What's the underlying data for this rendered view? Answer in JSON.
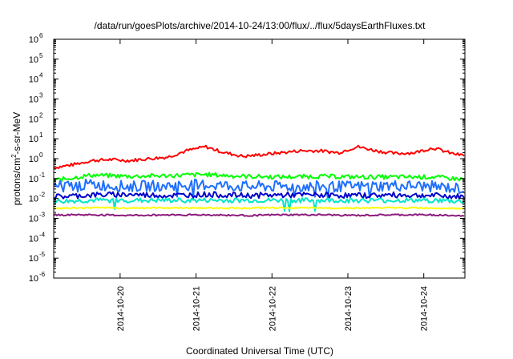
{
  "chart_data": {
    "type": "line",
    "title": "/data/run/goesPlots/archive/2014-10-24/13:00/flux/../flux/5daysEarthFluxes.txt",
    "xlabel": "Coordinated Universal Time (UTC)",
    "ylabel": {
      "base": "protons/cm",
      "sup": "2",
      "rest": "-s-sr-MeV"
    },
    "yscale": "log",
    "ylim": [
      1e-06,
      1000000.0
    ],
    "xlim": [
      "2014-10-19 03:00",
      "2014-10-24 13:00"
    ],
    "grid": false,
    "legend": "none",
    "y_ticks": [
      {
        "value": 1e-06,
        "exp": "-6"
      },
      {
        "value": 1e-05,
        "exp": "-5"
      },
      {
        "value": 0.0001,
        "exp": "-4"
      },
      {
        "value": 0.001,
        "exp": "-3"
      },
      {
        "value": 0.01,
        "exp": "-2"
      },
      {
        "value": 0.1,
        "exp": "-1"
      },
      {
        "value": 1,
        "exp": "0"
      },
      {
        "value": 10,
        "exp": "1"
      },
      {
        "value": 100,
        "exp": "2"
      },
      {
        "value": 1000,
        "exp": "3"
      },
      {
        "value": 10000,
        "exp": "4"
      },
      {
        "value": 100000,
        "exp": "5"
      },
      {
        "value": 1000000,
        "exp": "6"
      }
    ],
    "x_ticks": [
      {
        "value": "2014-10-20 00:00",
        "label": "2014-10-20"
      },
      {
        "value": "2014-10-21 00:00",
        "label": "2014-10-21"
      },
      {
        "value": "2014-10-22 00:00",
        "label": "2014-10-22"
      },
      {
        "value": "2014-10-23 00:00",
        "label": "2014-10-23"
      },
      {
        "value": "2014-10-24 00:00",
        "label": "2014-10-24"
      }
    ],
    "series": [
      {
        "color": "#ff0000",
        "x": [
          "2014-10-19 03:00",
          "2014-10-19 09:00",
          "2014-10-19 15:00",
          "2014-10-19 21:00",
          "2014-10-20 03:00",
          "2014-10-20 09:00",
          "2014-10-20 15:00",
          "2014-10-20 21:00",
          "2014-10-21 03:00",
          "2014-10-21 09:00",
          "2014-10-21 15:00",
          "2014-10-21 21:00",
          "2014-10-22 03:00",
          "2014-10-22 09:00",
          "2014-10-22 15:00",
          "2014-10-22 21:00",
          "2014-10-23 03:00",
          "2014-10-23 09:00",
          "2014-10-23 15:00",
          "2014-10-23 21:00",
          "2014-10-24 03:00",
          "2014-10-24 09:00",
          "2014-10-24 13:00"
        ],
        "y": [
          0.35,
          0.5,
          0.8,
          0.9,
          0.8,
          1.0,
          1.2,
          2.5,
          4.0,
          2.0,
          1.3,
          1.6,
          2.0,
          2.5,
          2.5,
          2.0,
          4.0,
          2.5,
          1.8,
          2.0,
          3.5,
          1.8,
          1.4
        ]
      },
      {
        "color": "#00ff00",
        "x": [
          "2014-10-19 03:00",
          "2014-10-19 15:00",
          "2014-10-20 03:00",
          "2014-10-20 15:00",
          "2014-10-21 03:00",
          "2014-10-21 15:00",
          "2014-10-22 03:00",
          "2014-10-22 15:00",
          "2014-10-23 03:00",
          "2014-10-23 15:00",
          "2014-10-24 03:00",
          "2014-10-24 13:00"
        ],
        "y": [
          0.08,
          0.15,
          0.13,
          0.14,
          0.16,
          0.13,
          0.12,
          0.13,
          0.12,
          0.12,
          0.12,
          0.09
        ]
      },
      {
        "color": "#1e6fff",
        "x": [
          "2014-10-19 03:00",
          "2014-10-19 15:00",
          "2014-10-20 03:00",
          "2014-10-20 15:00",
          "2014-10-21 03:00",
          "2014-10-21 15:00",
          "2014-10-22 03:00",
          "2014-10-22 15:00",
          "2014-10-23 03:00",
          "2014-10-23 15:00",
          "2014-10-24 03:00",
          "2014-10-24 13:00"
        ],
        "y": [
          0.04,
          0.05,
          0.04,
          0.045,
          0.05,
          0.04,
          0.04,
          0.04,
          0.04,
          0.045,
          0.04,
          0.03
        ]
      },
      {
        "color": "#0000cd",
        "x": [
          "2014-10-19 03:00",
          "2014-10-19 15:00",
          "2014-10-20 03:00",
          "2014-10-20 15:00",
          "2014-10-21 03:00",
          "2014-10-21 15:00",
          "2014-10-22 03:00",
          "2014-10-22 15:00",
          "2014-10-23 03:00",
          "2014-10-23 15:00",
          "2014-10-24 03:00",
          "2014-10-24 13:00"
        ],
        "y": [
          0.012,
          0.015,
          0.016,
          0.014,
          0.016,
          0.014,
          0.015,
          0.015,
          0.014,
          0.015,
          0.014,
          0.012
        ]
      },
      {
        "color": "#00e5c8",
        "x": [
          "2014-10-19 03:00",
          "2014-10-19 15:00",
          "2014-10-20 03:00",
          "2014-10-20 15:00",
          "2014-10-21 03:00",
          "2014-10-21 15:00",
          "2014-10-22 03:00",
          "2014-10-22 15:00",
          "2014-10-23 03:00",
          "2014-10-23 15:00",
          "2014-10-24 03:00",
          "2014-10-24 13:00"
        ],
        "y": [
          0.007,
          0.008,
          0.008,
          0.008,
          0.008,
          0.008,
          0.008,
          0.008,
          0.008,
          0.008,
          0.008,
          0.007
        ]
      },
      {
        "color": "#ffff00",
        "x": [
          "2014-10-19 03:00",
          "2014-10-19 15:00",
          "2014-10-20 03:00",
          "2014-10-20 15:00",
          "2014-10-21 03:00",
          "2014-10-21 15:00",
          "2014-10-22 03:00",
          "2014-10-22 15:00",
          "2014-10-23 03:00",
          "2014-10-23 15:00",
          "2014-10-24 03:00",
          "2014-10-24 13:00"
        ],
        "y": [
          0.0032,
          0.0034,
          0.0033,
          0.0034,
          0.0033,
          0.0033,
          0.0034,
          0.0033,
          0.0033,
          0.0034,
          0.0033,
          0.0032
        ]
      },
      {
        "color": "#8b1a7a",
        "x": [
          "2014-10-19 03:00",
          "2014-10-19 15:00",
          "2014-10-20 03:00",
          "2014-10-20 15:00",
          "2014-10-21 03:00",
          "2014-10-21 15:00",
          "2014-10-22 03:00",
          "2014-10-22 15:00",
          "2014-10-23 03:00",
          "2014-10-23 15:00",
          "2014-10-24 03:00",
          "2014-10-24 13:00"
        ],
        "y": [
          0.0015,
          0.0015,
          0.0014,
          0.0015,
          0.0015,
          0.0014,
          0.0015,
          0.0015,
          0.0014,
          0.0015,
          0.0015,
          0.0013
        ]
      }
    ]
  }
}
